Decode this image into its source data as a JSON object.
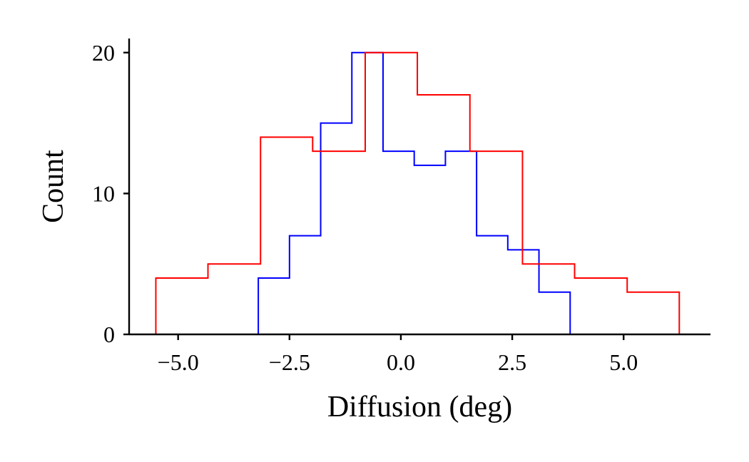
{
  "chart_data": {
    "type": "histogram",
    "xlabel": "Diffusion (deg)",
    "ylabel": "Count",
    "xlim": [
      -6.1,
      6.95
    ],
    "ylim": [
      0,
      21
    ],
    "xticks": [
      -5.0,
      -2.5,
      0.0,
      2.5,
      5.0
    ],
    "xtick_labels": [
      "−5.0",
      "−2.5",
      "0.0",
      "2.5",
      "5.0"
    ],
    "yticks": [
      0,
      10,
      20
    ],
    "ytick_labels": [
      "0",
      "10",
      "20"
    ],
    "grid": false,
    "series": [
      {
        "color": "#0000ff",
        "bin_edges": [
          -3.2,
          -2.5,
          -1.8,
          -1.1,
          -0.4,
          0.3,
          1.0,
          1.7,
          2.4,
          3.1,
          3.8
        ],
        "counts": [
          4,
          7,
          15,
          20,
          13,
          12,
          13,
          7,
          6,
          3
        ]
      },
      {
        "color": "#ff0000",
        "bin_edges": [
          -5.5,
          -4.33,
          -3.15,
          -1.98,
          -0.8,
          0.37,
          1.55,
          2.73,
          3.9,
          5.08,
          6.25
        ],
        "counts": [
          4,
          5,
          14,
          13,
          20,
          17,
          13,
          5,
          4,
          3
        ]
      }
    ]
  }
}
